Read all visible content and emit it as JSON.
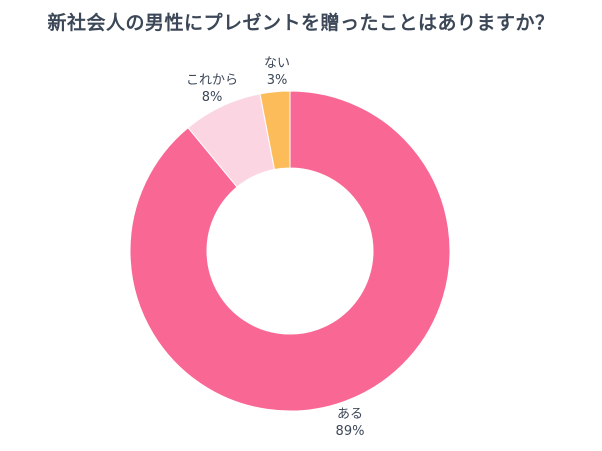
{
  "title": "新社会人の男性にプレゼントを贈ったことはありますか？",
  "chart_data": {
    "type": "pie",
    "title": "新社会人の男性にプレゼントを贈ったことはありますか？",
    "categories": [
      "ある",
      "これから",
      "ない"
    ],
    "values": [
      89,
      8,
      3
    ],
    "value_labels": [
      "89%",
      "8%",
      "3%"
    ],
    "colors": [
      "#f96895",
      "#fcd5e3",
      "#fcbc5a"
    ],
    "donut": true,
    "start": "12 o'clock",
    "direction": "clockwise",
    "legend": "none"
  }
}
